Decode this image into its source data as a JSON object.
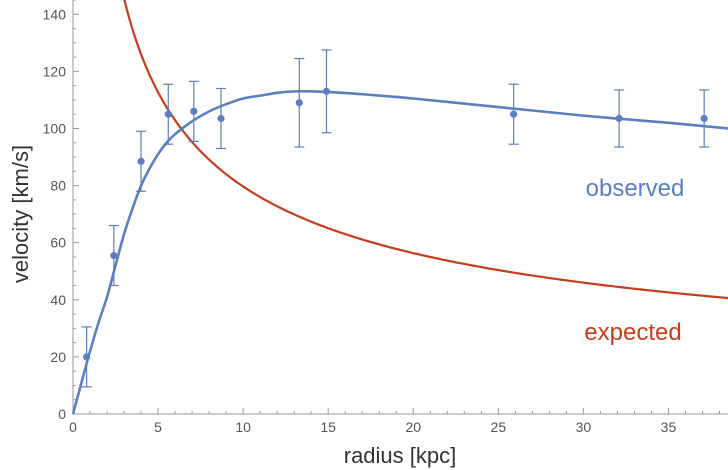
{
  "chart_data": {
    "type": "scatter",
    "xlabel": "radius [kpc]",
    "ylabel": "velocity [km/s]",
    "xlim": [
      0,
      38.5
    ],
    "ylim": [
      0,
      145
    ],
    "x_ticks": [
      0,
      5,
      10,
      15,
      20,
      25,
      30,
      35
    ],
    "y_ticks": [
      0,
      20,
      40,
      60,
      80,
      100,
      120,
      140
    ],
    "grid": false,
    "series": [
      {
        "name": "observed",
        "color": "#5b7fbf",
        "kind": "points_with_errorbars_and_fit",
        "points": [
          {
            "x": 0.8,
            "y": 20,
            "err": 10.5
          },
          {
            "x": 2.4,
            "y": 55.5,
            "err": 10.5
          },
          {
            "x": 4.0,
            "y": 88.5,
            "err": 10.5
          },
          {
            "x": 5.6,
            "y": 105,
            "err": 10.5
          },
          {
            "x": 7.1,
            "y": 106,
            "err": 10.5
          },
          {
            "x": 8.7,
            "y": 103.5,
            "err": 10.5
          },
          {
            "x": 13.3,
            "y": 109,
            "err": 15.5
          },
          {
            "x": 14.9,
            "y": 113,
            "err": 14.5
          },
          {
            "x": 25.9,
            "y": 105,
            "err": 10.5
          },
          {
            "x": 32.1,
            "y": 103.5,
            "err": 10
          },
          {
            "x": 37.1,
            "y": 103.5,
            "err": 10
          }
        ],
        "fit_curve": [
          [
            0,
            0
          ],
          [
            0.5,
            11
          ],
          [
            1,
            22
          ],
          [
            1.5,
            32
          ],
          [
            2,
            41
          ],
          [
            2.5,
            52
          ],
          [
            3,
            63
          ],
          [
            3.5,
            72
          ],
          [
            4,
            80
          ],
          [
            4.5,
            86
          ],
          [
            5,
            91
          ],
          [
            5.5,
            95
          ],
          [
            6,
            98
          ],
          [
            7,
            102.5
          ],
          [
            8,
            106
          ],
          [
            9,
            108.5
          ],
          [
            10,
            110.5
          ],
          [
            11,
            111.5
          ],
          [
            12,
            112.5
          ],
          [
            13,
            113
          ],
          [
            14,
            113
          ],
          [
            15,
            112.8
          ],
          [
            17,
            112
          ],
          [
            20,
            110.5
          ],
          [
            25,
            107.5
          ],
          [
            30,
            104.5
          ],
          [
            35,
            102
          ],
          [
            38.5,
            100
          ]
        ]
      },
      {
        "name": "expected",
        "color": "#c83c1e",
        "kind": "line",
        "function": "y = 252 / sqrt(x)",
        "x_range": [
          3.0,
          38.5
        ]
      }
    ]
  }
}
